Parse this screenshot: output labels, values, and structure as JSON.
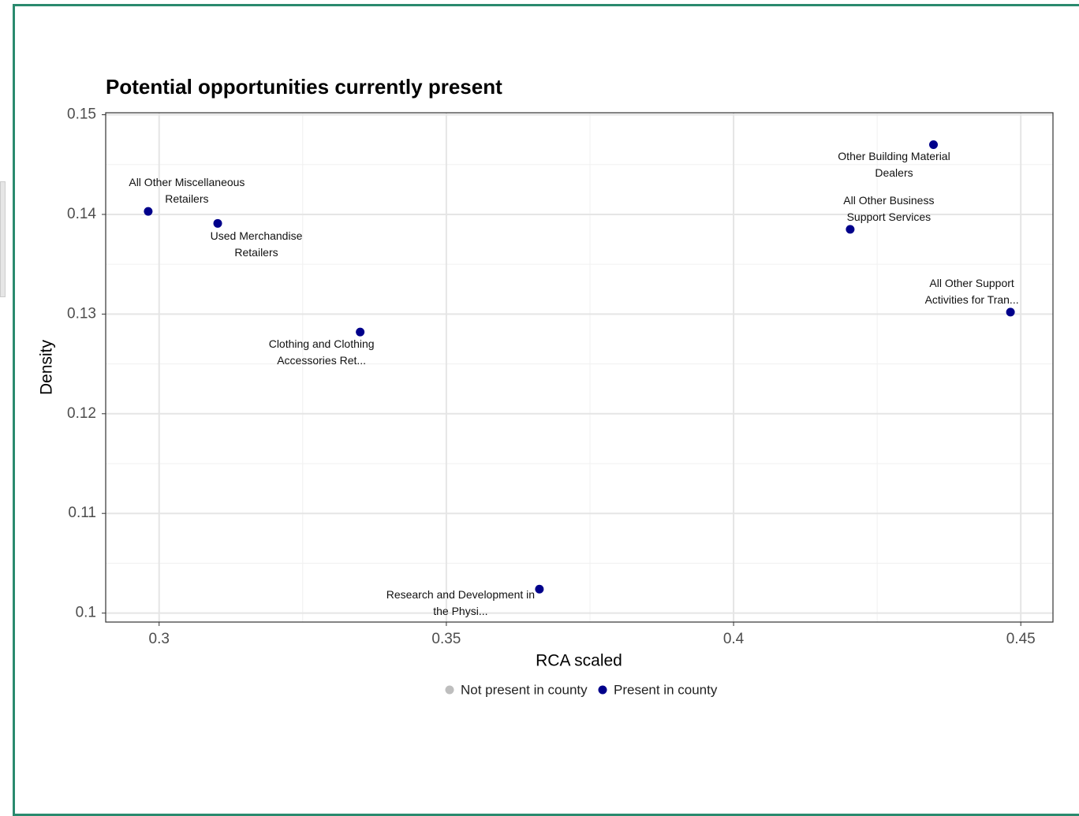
{
  "chart_data": {
    "type": "scatter",
    "title": "Potential opportunities currently present",
    "x_label": "RCA scaled",
    "y_label": "Density",
    "xlim": [
      0.2907,
      0.4556
    ],
    "xticks": [
      0.3,
      0.35,
      0.4,
      0.45
    ],
    "ylim": [
      0.0991,
      0.1502
    ],
    "yticks": [
      0.1,
      0.11,
      0.12,
      0.13,
      0.14,
      0.15
    ],
    "grid": true,
    "legend": "bottom",
    "series": [
      {
        "name": "Not present in county",
        "color": "#bebebe",
        "x": [],
        "values": [],
        "labels": []
      },
      {
        "name": "Present in county",
        "color": "#00008b",
        "x": [
          0.2981,
          0.3102,
          0.335,
          0.3662,
          0.4348,
          0.4203,
          0.4482
        ],
        "values": [
          0.1403,
          0.1391,
          0.1282,
          0.1024,
          0.147,
          0.1385,
          0.1302
        ],
        "labels": [
          "All Other Miscellaneous Retailers",
          "Used Merchandise Retailers",
          "Clothing and Clothing Accessories Ret...",
          "Research and Development in the Physi...",
          "Other Building Material Dealers",
          "All Other Business Support Services",
          "All Other Support Activities for Tran..."
        ]
      }
    ]
  }
}
